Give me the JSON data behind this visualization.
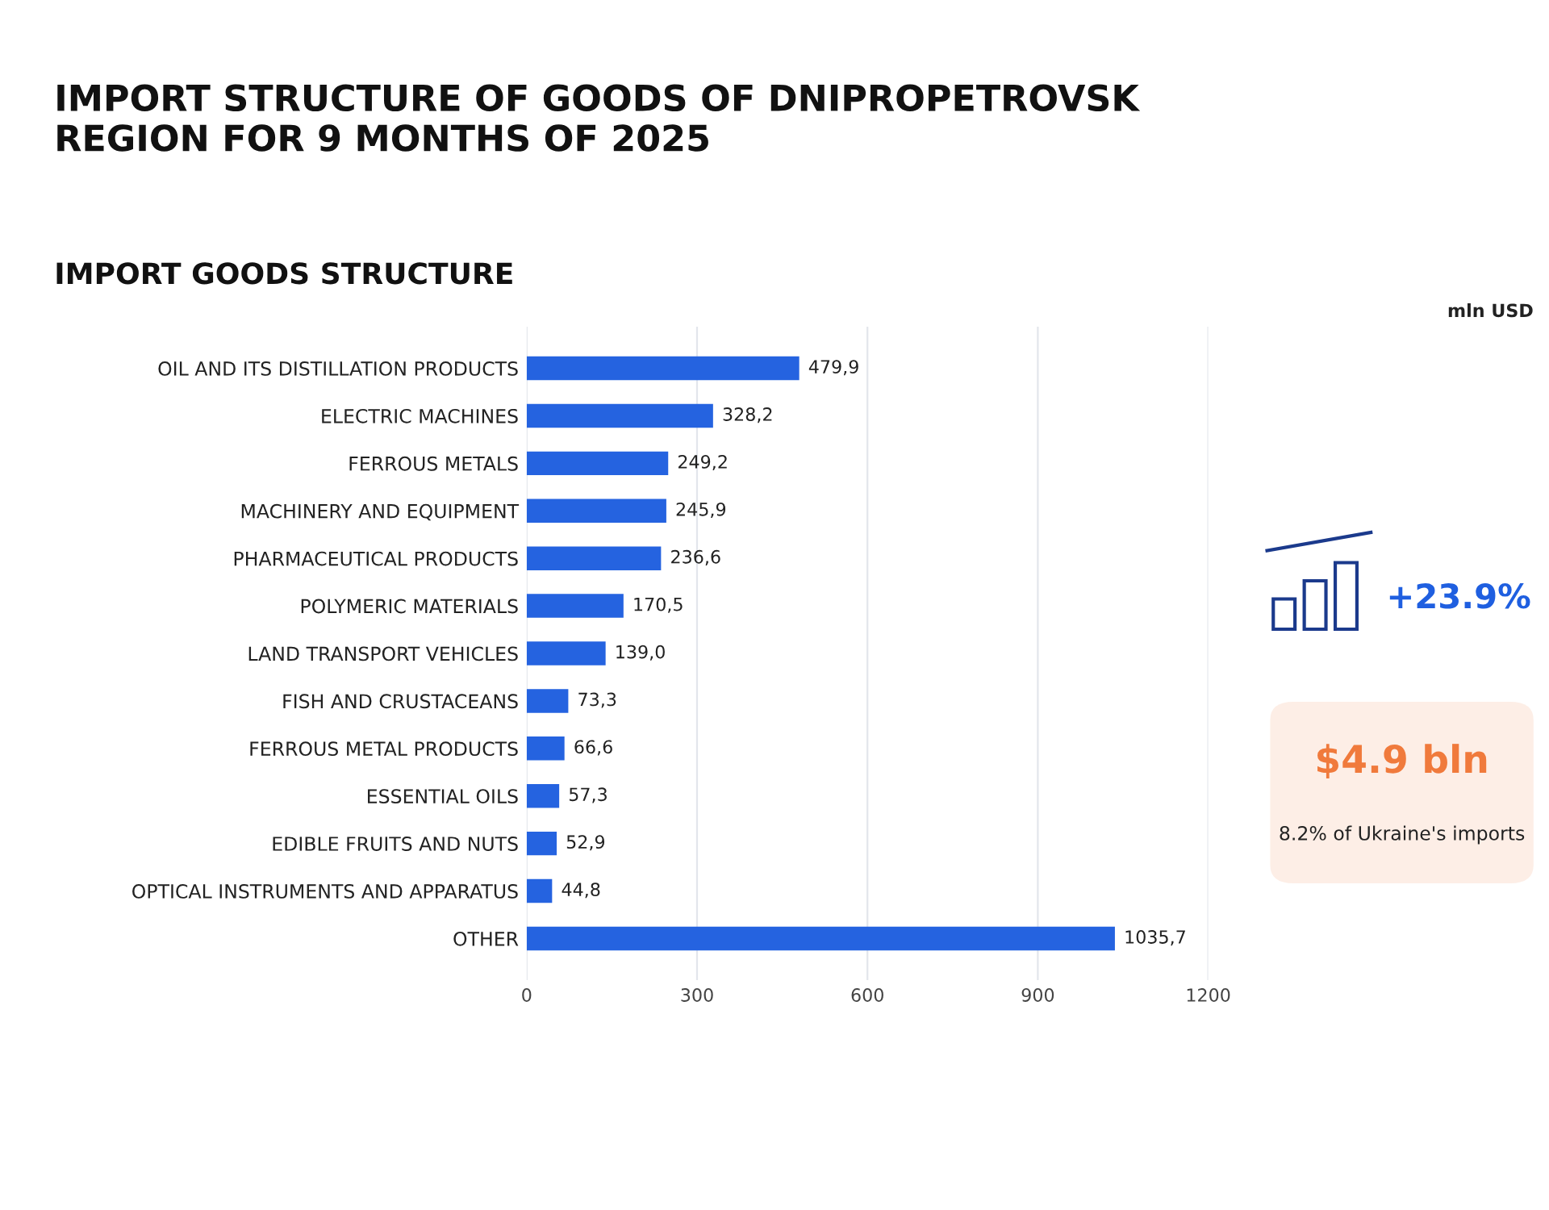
{
  "chart_data": {
    "type": "bar",
    "orientation": "horizontal",
    "title": "IMPORT STRUCTURE OF GOODS OF DNIPROPETROVSK\nREGION FOR 9 MONTHS OF 2025",
    "subtitle": "IMPORT GOODS STRUCTURE",
    "categories": [
      "OIL AND ITS DISTILLATION PRODUCTS",
      "ELECTRIC MACHINES",
      "FERROUS METALS",
      "MACHINERY AND EQUIPMENT",
      "PHARMACEUTICAL PRODUCTS",
      "POLYMERIC MATERIALS",
      "LAND TRANSPORT VEHICLES",
      "FISH AND CRUSTACEANS",
      "FERROUS METAL PRODUCTS",
      "ESSENTIAL OILS",
      "EDIBLE FRUITS AND NUTS",
      "OPTICAL INSTRUMENTS AND APPARATUS",
      "OTHER"
    ],
    "values": [
      479.9,
      328.2,
      249.2,
      245.9,
      236.6,
      170.5,
      139.0,
      73.3,
      66.6,
      57.3,
      52.9,
      44.8,
      1035.7
    ],
    "value_labels": [
      "479,9",
      "328,2",
      "249,2",
      "245,9",
      "236,6",
      "170,5",
      "139,0",
      "73,3",
      "66,6",
      "57,3",
      "52,9",
      "44,8",
      "1035,7"
    ],
    "color": "#2563e0",
    "xlim": [
      0,
      1200
    ],
    "xticks": [
      0,
      300,
      600,
      900,
      1200
    ],
    "grid": "x",
    "annotations": [
      "+23.9%",
      "$4.9 bln",
      "8.2% of Ukraine's imports",
      "mln USD"
    ]
  }
}
